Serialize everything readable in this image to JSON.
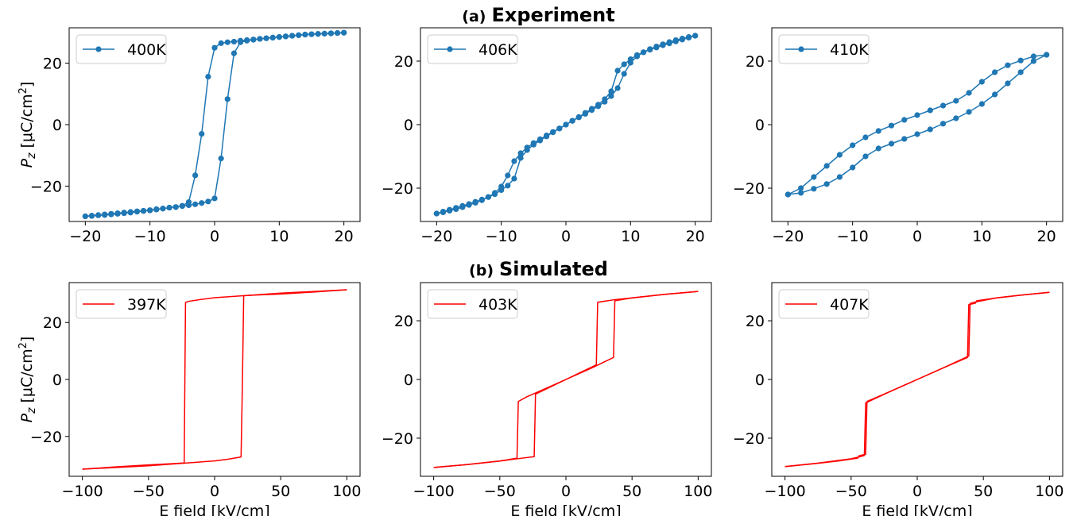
{
  "headings": [
    {
      "tag": "(a)",
      "title": "Experiment"
    },
    {
      "tag": "(b)",
      "title": "Simulated"
    }
  ],
  "chart_data": [
    {
      "type": "line",
      "row": 0,
      "col": 0,
      "legend": "400K",
      "legend_position": "top-left",
      "color": "#1f77b4",
      "marker": "circle",
      "xlim": [
        -22.5,
        22.5
      ],
      "ylim": [
        -31.5,
        31.5
      ],
      "xticks": [
        -20,
        -10,
        0,
        10,
        20
      ],
      "yticks": [
        -20,
        0,
        20
      ],
      "xlabel": "",
      "ylabel": "P_z [μC/cm²]",
      "branches": [
        {
          "x": [
            -20,
            -19,
            -18,
            -17,
            -16,
            -15,
            -14,
            -13,
            -12,
            -11,
            -10,
            -9,
            -8,
            -7,
            -6,
            -5,
            -4,
            -3,
            -2,
            -1,
            0,
            1,
            2,
            3,
            4,
            5,
            6,
            7,
            8,
            9,
            10,
            11,
            12,
            13,
            14,
            15,
            16,
            17,
            18,
            19,
            20
          ],
          "y": [
            -29.8,
            -29.6,
            -29.4,
            -29.2,
            -29.0,
            -28.8,
            -28.6,
            -28.4,
            -28.2,
            -28.0,
            -27.8,
            -27.5,
            -27.3,
            -27.0,
            -26.8,
            -26.5,
            -26.2,
            -25.9,
            -25.5,
            -25.0,
            -24.0,
            -11.0,
            8.3,
            23.2,
            26.8,
            27.3,
            27.6,
            27.9,
            28.1,
            28.3,
            28.5,
            28.7,
            28.9,
            29.1,
            29.3,
            29.4,
            29.5,
            29.6,
            29.7,
            29.8,
            29.9
          ]
        },
        {
          "x": [
            20,
            19,
            18,
            17,
            16,
            15,
            14,
            13,
            12,
            11,
            10,
            9,
            8,
            7,
            6,
            5,
            4,
            3,
            2,
            1,
            0,
            -1,
            -2,
            -3,
            -4,
            -5,
            -6,
            -7,
            -8,
            -9,
            -10,
            -11,
            -12,
            -13,
            -14,
            -15,
            -16,
            -17,
            -18,
            -19,
            -20
          ],
          "y": [
            29.9,
            29.8,
            29.7,
            29.6,
            29.5,
            29.4,
            29.3,
            29.1,
            28.9,
            28.7,
            28.5,
            28.3,
            28.1,
            27.9,
            27.7,
            27.5,
            27.3,
            27.0,
            26.8,
            26.5,
            25.0,
            15.6,
            -3.0,
            -16.5,
            -25.2,
            -26.4,
            -26.8,
            -27.0,
            -27.3,
            -27.6,
            -27.9,
            -28.1,
            -28.3,
            -28.6,
            -28.8,
            -29.0,
            -29.2,
            -29.4,
            -29.5,
            -29.7,
            -29.8
          ]
        }
      ]
    },
    {
      "type": "line",
      "row": 0,
      "col": 1,
      "legend": "406K",
      "legend_position": "top-left",
      "color": "#1f77b4",
      "marker": "circle",
      "xlim": [
        -22.5,
        22.5
      ],
      "ylim": [
        -30.5,
        30.5
      ],
      "xticks": [
        -20,
        -10,
        0,
        10,
        20
      ],
      "yticks": [
        -20,
        0,
        20
      ],
      "xlabel": "",
      "ylabel": "",
      "branches": [
        {
          "x": [
            -20,
            -19,
            -18,
            -17,
            -16,
            -15,
            -14,
            -13,
            -12,
            -11,
            -10,
            -9,
            -8,
            -7,
            -6,
            -5,
            -4,
            -3,
            -2,
            -1,
            0,
            1,
            2,
            3,
            4,
            5,
            6,
            7,
            8,
            9,
            10,
            11,
            12,
            13,
            14,
            15,
            16,
            17,
            18,
            19,
            20
          ],
          "y": [
            -28.0,
            -27.4,
            -26.8,
            -26.2,
            -25.6,
            -25.0,
            -24.3,
            -23.6,
            -22.8,
            -21.9,
            -20.6,
            -19.2,
            -17.0,
            -10.5,
            -8.0,
            -6.3,
            -5.0,
            -3.7,
            -2.4,
            -1.2,
            0.0,
            1.2,
            2.3,
            3.4,
            4.6,
            5.8,
            7.2,
            9.0,
            11.5,
            16.0,
            19.5,
            21.5,
            22.8,
            23.8,
            24.6,
            25.3,
            26.0,
            26.6,
            27.1,
            27.6,
            28.0
          ]
        },
        {
          "x": [
            20,
            19,
            18,
            17,
            16,
            15,
            14,
            13,
            12,
            11,
            10,
            9,
            8,
            7,
            6,
            5,
            4,
            3,
            2,
            1,
            0,
            -1,
            -2,
            -3,
            -4,
            -5,
            -6,
            -7,
            -8,
            -9,
            -10,
            -11,
            -12,
            -13,
            -14,
            -15,
            -16,
            -17,
            -18,
            -19,
            -20
          ],
          "y": [
            28.0,
            27.4,
            26.8,
            26.2,
            25.6,
            25.0,
            24.3,
            23.6,
            22.8,
            21.9,
            20.6,
            19.0,
            17.0,
            10.5,
            8.0,
            6.3,
            5.0,
            3.7,
            2.4,
            1.2,
            0.0,
            -1.2,
            -2.3,
            -3.4,
            -4.6,
            -5.8,
            -7.2,
            -9.0,
            -11.5,
            -16.0,
            -19.5,
            -21.5,
            -22.8,
            -23.8,
            -24.6,
            -25.3,
            -26.0,
            -26.6,
            -27.1,
            -27.6,
            -28.0
          ]
        }
      ]
    },
    {
      "type": "line",
      "row": 0,
      "col": 2,
      "legend": "410K",
      "legend_position": "top-left",
      "color": "#1f77b4",
      "marker": "circle",
      "xlim": [
        -22.5,
        22.5
      ],
      "ylim": [
        -30.5,
        30.5
      ],
      "xticks": [
        -20,
        -10,
        0,
        10,
        20
      ],
      "yticks": [
        -20,
        0,
        20
      ],
      "xlabel": "",
      "ylabel": "",
      "branches": [
        {
          "x": [
            -20,
            -18,
            -16,
            -14,
            -12,
            -10,
            -8,
            -6,
            -4,
            -2,
            0,
            2,
            4,
            6,
            8,
            10,
            12,
            14,
            16,
            18,
            20
          ],
          "y": [
            -22.0,
            -21.5,
            -20.2,
            -18.7,
            -16.5,
            -13.5,
            -10.0,
            -7.5,
            -6.0,
            -4.5,
            -3.0,
            -1.5,
            0.3,
            2.0,
            4.0,
            6.5,
            9.5,
            13.0,
            16.5,
            20.0,
            22.0
          ]
        },
        {
          "x": [
            20,
            18,
            16,
            14,
            12,
            10,
            8,
            6,
            4,
            2,
            0,
            -2,
            -4,
            -6,
            -8,
            -10,
            -12,
            -14,
            -16,
            -18,
            -20
          ],
          "y": [
            22.0,
            21.5,
            20.2,
            18.7,
            16.5,
            13.5,
            10.0,
            7.5,
            6.0,
            4.5,
            3.0,
            1.5,
            -0.3,
            -2.0,
            -4.0,
            -6.5,
            -9.5,
            -13.0,
            -16.5,
            -20.0,
            -22.0
          ]
        }
      ]
    },
    {
      "type": "line",
      "row": 1,
      "col": 0,
      "legend": "397K",
      "legend_position": "top-left",
      "color": "#ff0000",
      "marker": "none",
      "xlim": [
        -110,
        110
      ],
      "ylim": [
        -34,
        34
      ],
      "xticks": [
        -100,
        -50,
        0,
        50,
        100
      ],
      "yticks": [
        -20,
        0,
        20
      ],
      "xlabel": "E field [kV/cm]",
      "ylabel": "P_z [μC/cm²]",
      "branches": [
        {
          "x": [
            -100,
            -50,
            0,
            10,
            20,
            21,
            22,
            30,
            50,
            75,
            100
          ],
          "y": [
            -31.5,
            -30.3,
            -28.6,
            -28.0,
            -27.2,
            -2.0,
            29.4,
            29.6,
            30.0,
            30.7,
            31.5
          ]
        },
        {
          "x": [
            100,
            50,
            0,
            -10,
            -20,
            -22,
            -23,
            -30,
            -50,
            -75,
            -100
          ],
          "y": [
            31.5,
            30.3,
            28.7,
            28.1,
            27.4,
            27.0,
            -29.3,
            -29.5,
            -30.0,
            -30.7,
            -31.5
          ]
        }
      ]
    },
    {
      "type": "line",
      "row": 1,
      "col": 1,
      "legend": "403K",
      "legend_position": "top-left",
      "color": "#ff0000",
      "marker": "none",
      "xlim": [
        -110,
        110
      ],
      "ylim": [
        -33,
        33
      ],
      "xticks": [
        -100,
        -50,
        0,
        50,
        100
      ],
      "yticks": [
        -20,
        0,
        20
      ],
      "xlabel": "E field [kV/cm]",
      "ylabel": "",
      "branches": [
        {
          "x": [
            -100,
            -75,
            -50,
            -40,
            -24,
            -23,
            -10,
            0,
            10,
            20,
            30,
            36,
            37,
            50,
            75,
            100
          ],
          "y": [
            -30.0,
            -29.0,
            -27.8,
            -27.2,
            -26.3,
            -5.0,
            -2.2,
            0.0,
            2.0,
            4.0,
            6.2,
            7.5,
            26.8,
            27.8,
            29.0,
            30.0
          ]
        },
        {
          "x": [
            100,
            75,
            50,
            37,
            24,
            23,
            10,
            0,
            -10,
            -20,
            -30,
            -36,
            -37,
            -50,
            -75,
            -100
          ],
          "y": [
            30.0,
            29.0,
            27.8,
            27.2,
            26.3,
            5.0,
            2.2,
            0.0,
            -2.0,
            -4.0,
            -6.0,
            -7.5,
            -26.8,
            -27.8,
            -29.0,
            -30.0
          ]
        }
      ]
    },
    {
      "type": "line",
      "row": 1,
      "col": 2,
      "legend": "407K",
      "legend_position": "top-left",
      "color": "#ff0000",
      "marker": "none",
      "xlim": [
        -110,
        110
      ],
      "ylim": [
        -33,
        33
      ],
      "xticks": [
        -100,
        -50,
        0,
        50,
        100
      ],
      "yticks": [
        -20,
        0,
        20
      ],
      "xlabel": "E field [kV/cm]",
      "ylabel": "",
      "branches": [
        {
          "x": [
            -100,
            -75,
            -50,
            -44,
            -40,
            -39,
            -20,
            0,
            20,
            38,
            39,
            44,
            45,
            60,
            80,
            100
          ],
          "y": [
            -29.7,
            -28.5,
            -27.0,
            -26.4,
            -25.9,
            -8.0,
            -4.0,
            0.0,
            4.0,
            7.5,
            25.5,
            26.0,
            26.8,
            27.8,
            28.8,
            29.7
          ]
        },
        {
          "x": [
            100,
            80,
            60,
            44,
            40,
            39,
            20,
            0,
            -20,
            -38,
            -39,
            -44,
            -45,
            -60,
            -80,
            -100
          ],
          "y": [
            29.7,
            28.8,
            27.8,
            26.4,
            25.9,
            8.0,
            4.0,
            0.0,
            -4.0,
            -7.5,
            -25.5,
            -26.0,
            -26.8,
            -27.8,
            -28.8,
            -29.7
          ]
        }
      ]
    }
  ]
}
